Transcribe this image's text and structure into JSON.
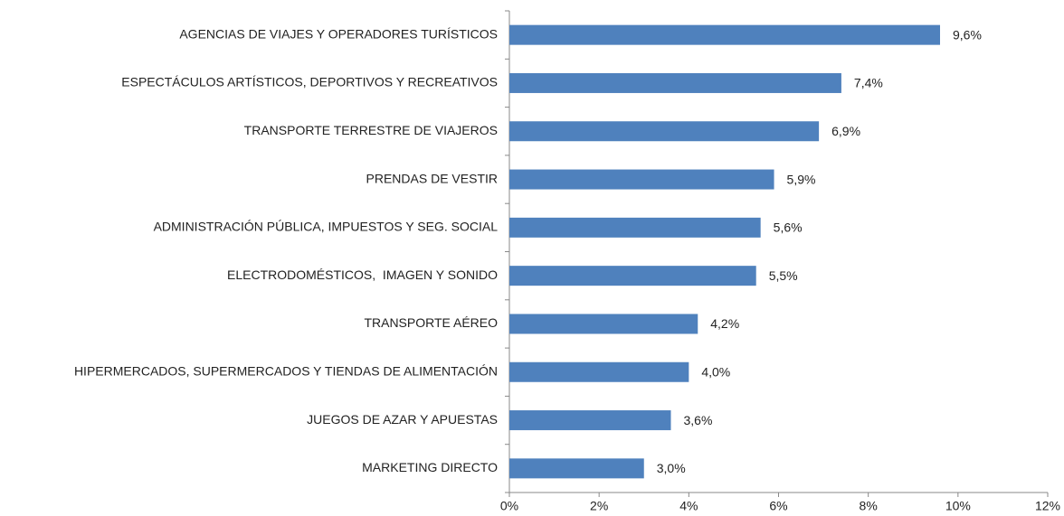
{
  "chart_data": {
    "type": "hbar",
    "categories": [
      "AGENCIAS DE VIAJES Y OPERADORES TURÍSTICOS",
      "ESPECTÁCULOS ARTÍSTICOS, DEPORTIVOS Y RECREATIVOS",
      "TRANSPORTE TERRESTRE DE VIAJEROS",
      "PRENDAS DE VESTIR",
      "ADMINISTRACIÓN PÚBLICA, IMPUESTOS Y SEG. SOCIAL",
      "ELECTRODOMÉSTICOS,  IMAGEN Y SONIDO",
      "TRANSPORTE AÉREO",
      "HIPERMERCADOS, SUPERMERCADOS Y TIENDAS DE ALIMENTACIÓN",
      "JUEGOS DE AZAR Y APUESTAS",
      "MARKETING DIRECTO"
    ],
    "values": [
      9.6,
      7.4,
      6.9,
      5.9,
      5.6,
      5.5,
      4.2,
      4.0,
      3.6,
      3.0
    ],
    "value_labels": [
      "9,6%",
      "7,4%",
      "6,9%",
      "5,9%",
      "5,6%",
      "5,5%",
      "4,2%",
      "4,0%",
      "3,6%",
      "3,0%"
    ],
    "color": "#4f81bd",
    "xlim": [
      0,
      12
    ],
    "xticks": [
      {
        "value": 0,
        "label": "0%"
      },
      {
        "value": 2,
        "label": "2%"
      },
      {
        "value": 4,
        "label": "4%"
      },
      {
        "value": 6,
        "label": "6%"
      },
      {
        "value": 8,
        "label": "8%"
      },
      {
        "value": 10,
        "label": "10%"
      },
      {
        "value": 12,
        "label": "12%"
      }
    ]
  }
}
